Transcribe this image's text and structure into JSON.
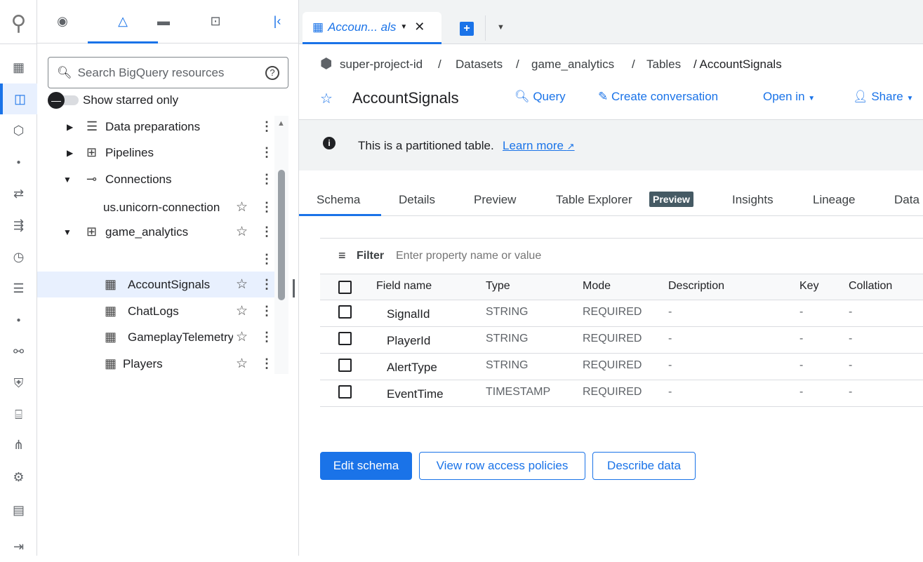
{
  "rail": {
    "items": [
      "logo",
      "dashboard",
      "explorer",
      "pipelines",
      "dot",
      "transfers",
      "workflows",
      "history",
      "jobs",
      "dot",
      "search-graph",
      "security",
      "capacity",
      "lineage",
      "settings",
      "release-notes",
      "expand"
    ]
  },
  "explorer": {
    "tabs": [
      "explore",
      "classic-explorer",
      "files",
      "repositories"
    ],
    "search_placeholder": "Search BigQuery resources",
    "starred_label": "Show starred only",
    "tree": [
      {
        "label": "Data preparations",
        "icon": "data-prep-icon",
        "arrow": "▶"
      },
      {
        "label": "Pipelines",
        "icon": "pipeline-icon",
        "arrow": "▶"
      },
      {
        "label": "Connections",
        "icon": "connection-icon",
        "arrow": "▼"
      },
      {
        "label": "us.unicorn-connection",
        "icon": "",
        "arrow": ""
      },
      {
        "label": "game_analytics",
        "icon": "dataset-icon",
        "arrow": "▼"
      },
      {
        "label": "",
        "icon": "",
        "arrow": ""
      },
      {
        "label": "AccountSignals",
        "icon": "table-icon",
        "arrow": "",
        "selected": true
      },
      {
        "label": "ChatLogs",
        "icon": "table-icon",
        "arrow": ""
      },
      {
        "label": "GameplayTelemetry",
        "icon": "table-icon",
        "arrow": ""
      },
      {
        "label": "Players",
        "icon": "table-icon",
        "arrow": ""
      }
    ]
  },
  "tab": {
    "label": "Accoun... als"
  },
  "breadcrumb": [
    "super-project-id",
    "/",
    "Datasets",
    "/",
    "game_analytics",
    "/",
    "Tables",
    "/ AccountSignals"
  ],
  "header": {
    "title": "AccountSignals",
    "query": "Query",
    "conversation": "Create conversation",
    "open_in": "Open in",
    "share": "Share"
  },
  "banner": {
    "text": "This is a partitioned table.",
    "link": "Learn more"
  },
  "tabs": [
    {
      "label": "Schema"
    },
    {
      "label": "Details"
    },
    {
      "label": "Preview"
    },
    {
      "label": "Table Explorer"
    },
    {
      "label": "Insights"
    },
    {
      "label": "Lineage"
    },
    {
      "label": "Data"
    }
  ],
  "tab_badge": "Preview",
  "filter": {
    "label": "Filter",
    "placeholder": "Enter property name or value"
  },
  "schema": {
    "columns": [
      "Field name",
      "Type",
      "Mode",
      "Description",
      "Key",
      "Collation"
    ],
    "rows": [
      [
        "SignalId",
        "STRING",
        "REQUIRED",
        "-",
        "-",
        "-"
      ],
      [
        "PlayerId",
        "STRING",
        "REQUIRED",
        "-",
        "-",
        "-"
      ],
      [
        "AlertType",
        "STRING",
        "REQUIRED",
        "-",
        "-",
        "-"
      ],
      [
        "EventTime",
        "TIMESTAMP",
        "REQUIRED",
        "-",
        "-",
        "-"
      ]
    ]
  },
  "buttons": {
    "edit": "Edit schema",
    "row_access": "View row access policies",
    "describe": "Describe data"
  },
  "colors": {
    "accent": "#1a73e8",
    "badge": "#455a64"
  }
}
